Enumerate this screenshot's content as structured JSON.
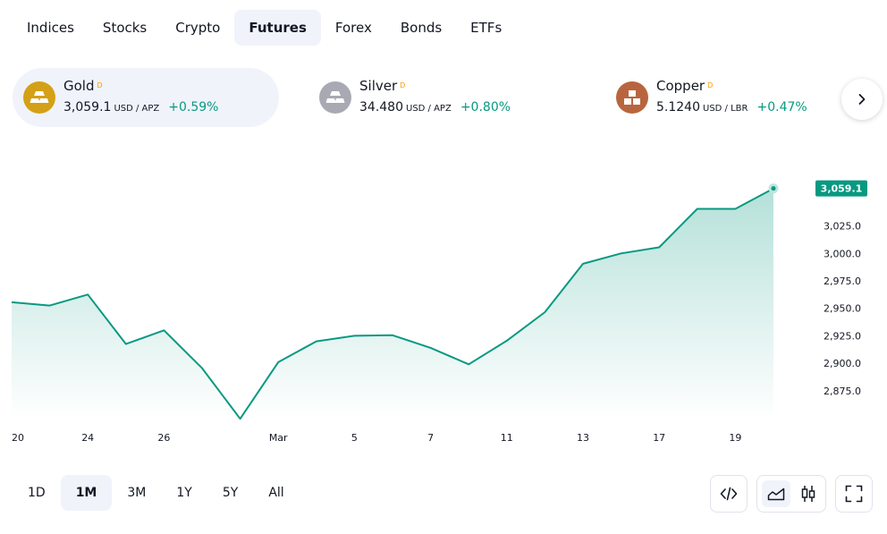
{
  "tabs": [
    "Indices",
    "Stocks",
    "Crypto",
    "Futures",
    "Forex",
    "Bonds",
    "ETFs"
  ],
  "active_tab": "Futures",
  "cards": [
    {
      "name": "Gold",
      "flag": "D",
      "price": "3,059.1",
      "unit": "USD / APZ",
      "change": "+0.59%",
      "color": "#d4a017",
      "icon": "gold-bars-icon"
    },
    {
      "name": "Silver",
      "flag": "D",
      "price": "34.480",
      "unit": "USD / APZ",
      "change": "+0.80%",
      "color": "#a9a9b3",
      "icon": "silver-bars-icon"
    },
    {
      "name": "Copper",
      "flag": "D",
      "price": "5.1240",
      "unit": "USD / LBR",
      "change": "+0.47%",
      "color": "#b8653f",
      "icon": "copper-blocks-icon"
    }
  ],
  "next_icon": "chevron-right-icon",
  "chart_data": {
    "type": "area",
    "x_labels": [
      "20",
      "24",
      "26",
      "Mar",
      "5",
      "7",
      "11",
      "13",
      "17",
      "19"
    ],
    "y_ticks": [
      "3,025.0",
      "3,000.0",
      "2,975.0",
      "2,950.0",
      "2,925.0",
      "2,900.0",
      "2,875.0"
    ],
    "y_tick_values": [
      3025,
      3000,
      2975,
      2950,
      2925,
      2900,
      2875
    ],
    "ylim": [
      2848,
      3080
    ],
    "last_value_label": "3,059.1",
    "values": [
      2955.5,
      2952.5,
      2962.5,
      2917.5,
      2930,
      2895.5,
      2849.5,
      2901,
      2920,
      2925,
      2925.5,
      2914,
      2899,
      2920.5,
      2946.5,
      2990.5,
      3000,
      3005.5,
      3040.5,
      3040.5,
      3059.1
    ],
    "line_color": "#089981",
    "grid": false
  },
  "ranges": [
    "1D",
    "1M",
    "3M",
    "1Y",
    "5Y",
    "All"
  ],
  "active_range": "1M",
  "tools": {
    "embed_icon": "code-icon",
    "area_icon": "area-chart-icon",
    "candle_icon": "candlestick-icon",
    "fullscreen_icon": "fullscreen-icon"
  }
}
